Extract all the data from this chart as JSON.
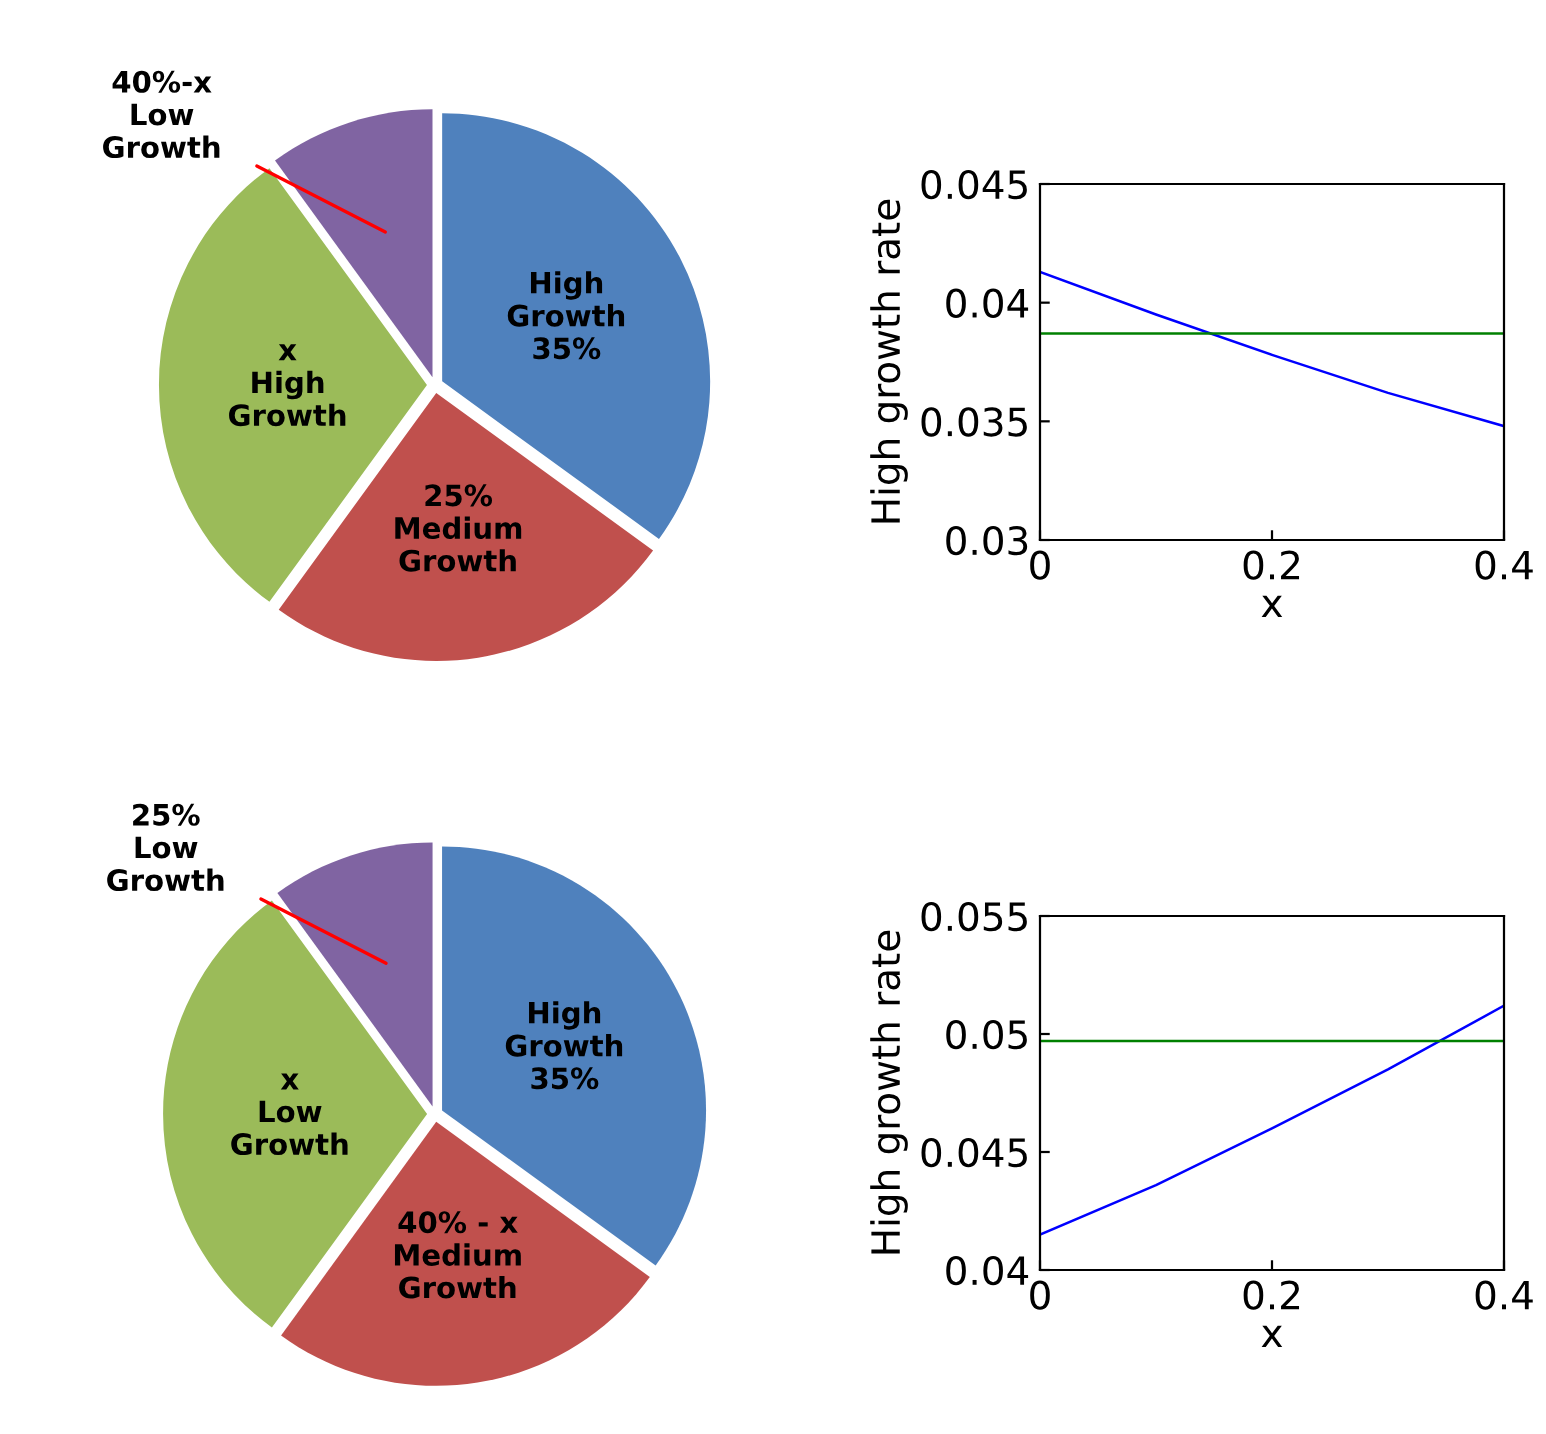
{
  "chart_data": [
    {
      "type": "pie",
      "categories": [
        "High\nGrowth\n35%",
        "25%\nMedium\nGrowth",
        "x\nHigh\nGrowth",
        "40%-x\nLow\nGrowth"
      ],
      "values": [
        35,
        25,
        30,
        10
      ],
      "colors": [
        "#4f81bd",
        "#c0504d",
        "#9bbb59",
        "#8064a2"
      ]
    },
    {
      "type": "line",
      "xlabel": "x",
      "ylabel": "High growth rate",
      "xlim": [
        0,
        0.4
      ],
      "xticks": [
        0,
        0.2,
        0.4
      ],
      "ylim": [
        0.03,
        0.045
      ],
      "yticks": [
        0.03,
        0.035,
        0.04,
        0.045
      ],
      "grid": false,
      "series": [
        {
          "color": "#0000ff",
          "x": [
            0,
            0.1,
            0.2,
            0.3,
            0.4
          ],
          "values": [
            0.0413,
            0.0395,
            0.0378,
            0.0362,
            0.0348
          ]
        }
      ],
      "ref_lines": [
        {
          "axis": "y",
          "value": 0.0387,
          "color": "#008000"
        }
      ]
    },
    {
      "type": "pie",
      "categories": [
        "High\nGrowth\n35%",
        "40% - x\nMedium\nGrowth",
        "x\nLow\nGrowth",
        "25%\nLow\nGrowth"
      ],
      "values": [
        35,
        25,
        30,
        10
      ],
      "colors": [
        "#4f81bd",
        "#c0504d",
        "#9bbb59",
        "#8064a2"
      ]
    },
    {
      "type": "line",
      "xlabel": "x",
      "ylabel": "High growth rate",
      "xlim": [
        0,
        0.4
      ],
      "xticks": [
        0,
        0.2,
        0.4
      ],
      "ylim": [
        0.04,
        0.055
      ],
      "yticks": [
        0.04,
        0.045,
        0.05,
        0.055
      ],
      "grid": false,
      "series": [
        {
          "color": "#0000ff",
          "x": [
            0,
            0.1,
            0.2,
            0.3,
            0.4
          ],
          "values": [
            0.0415,
            0.0436,
            0.046,
            0.0485,
            0.0512
          ]
        }
      ],
      "ref_lines": [
        {
          "axis": "y",
          "value": 0.0497,
          "color": "#008000"
        }
      ]
    }
  ]
}
